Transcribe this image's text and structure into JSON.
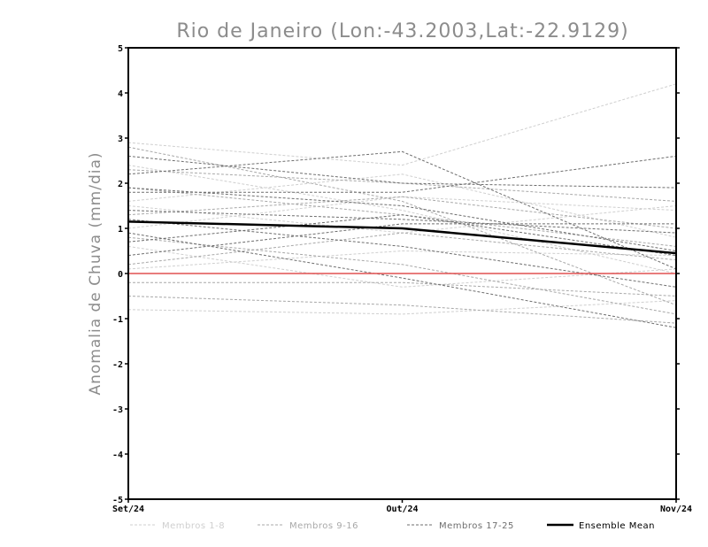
{
  "chart_data": {
    "type": "line",
    "title": "Rio de Janeiro (Lon:-43.2003,Lat:-22.9129)",
    "xlabel": "",
    "ylabel": "Anomalia de Chuva (mm/dia)",
    "categories": [
      "Set/24",
      "Out/24",
      "Nov/24"
    ],
    "ylim": [
      -5,
      5
    ],
    "yticks": [
      -5,
      -4,
      -3,
      -2,
      -1,
      0,
      1,
      2,
      3,
      4,
      5
    ],
    "zero_line_color": "#e05050",
    "groups": [
      {
        "name": "Membros 1-8",
        "color": "#cfcfcf",
        "dashed": true,
        "members": [
          [
            2.9,
            2.4,
            4.2
          ],
          [
            0.1,
            0.5,
            0.4
          ],
          [
            1.6,
            2.2,
            0.8
          ],
          [
            -0.8,
            -0.9,
            -0.6
          ],
          [
            1.0,
            1.7,
            1.4
          ],
          [
            2.4,
            1.4,
            0.0
          ],
          [
            0.6,
            -0.3,
            0.1
          ],
          [
            1.5,
            0.9,
            1.5
          ]
        ]
      },
      {
        "name": "Membros 9-16",
        "color": "#a8a8a8",
        "dashed": true,
        "members": [
          [
            0.8,
            0.2,
            -0.9
          ],
          [
            1.9,
            1.3,
            0.6
          ],
          [
            2.3,
            2.0,
            1.6
          ],
          [
            -0.2,
            -0.2,
            -0.5
          ],
          [
            1.3,
            1.7,
            1.0
          ],
          [
            0.2,
            0.9,
            0.3
          ],
          [
            2.8,
            1.6,
            -0.7
          ],
          [
            -0.5,
            -0.7,
            -1.1
          ]
        ]
      },
      {
        "name": "Membros 17-25",
        "color": "#6e6e6e",
        "dashed": true,
        "members": [
          [
            2.2,
            2.7,
            0.1
          ],
          [
            0.4,
            1.1,
            1.1
          ],
          [
            2.6,
            2.0,
            1.9
          ],
          [
            1.8,
            1.8,
            2.6
          ],
          [
            0.7,
            1.3,
            0.4
          ],
          [
            0.9,
            -0.1,
            -1.2
          ],
          [
            1.2,
            0.6,
            -0.3
          ],
          [
            1.4,
            1.2,
            0.9
          ],
          [
            1.9,
            1.5,
            0.5
          ]
        ]
      }
    ],
    "series": [
      {
        "name": "Ensemble Mean",
        "values": [
          1.15,
          1.0,
          0.45
        ],
        "color": "#000000"
      }
    ]
  }
}
